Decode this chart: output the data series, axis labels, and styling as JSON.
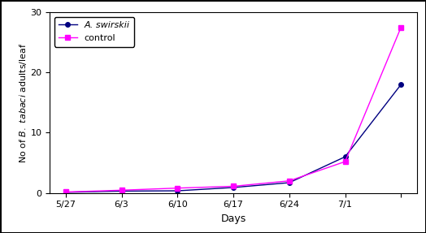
{
  "x_labels": [
    "5/27",
    "6/3",
    "6/10",
    "6/17",
    "6/24",
    "7/1",
    ""
  ],
  "x_positions": [
    0,
    7,
    14,
    21,
    28,
    35,
    42
  ],
  "swirskii_y": [
    0.1,
    0.3,
    0.35,
    0.9,
    1.7,
    6.0,
    18.0
  ],
  "control_y": [
    0.15,
    0.45,
    0.8,
    1.1,
    2.0,
    5.2,
    27.5
  ],
  "swirskii_color": "#000080",
  "control_color": "#FF00FF",
  "swirskii_label": "A. swirskii",
  "control_label": "control",
  "ylabel_normal": "No of ",
  "ylabel_normal2": " adults/leaf",
  "xlabel": "Days",
  "ylim": [
    0,
    30
  ],
  "yticks": [
    0,
    10,
    20,
    30
  ],
  "xlim": [
    -2,
    44
  ],
  "background_color": "#ffffff",
  "figsize": [
    5.24,
    2.87
  ],
  "dpi": 100
}
